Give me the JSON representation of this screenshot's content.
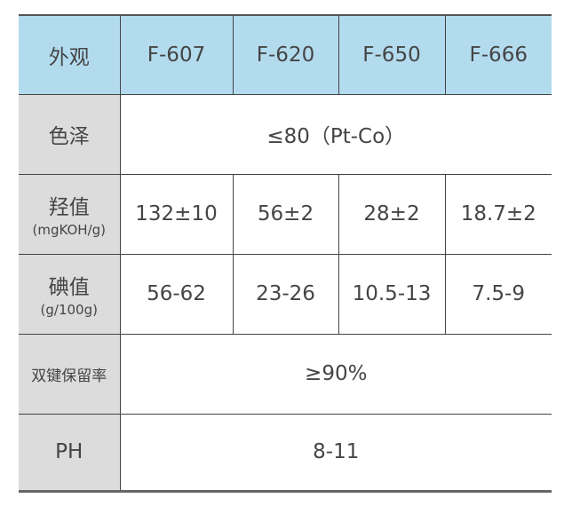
{
  "header": {
    "label": "外观",
    "products": [
      "F-607",
      "F-620",
      "F-650",
      "F-666"
    ]
  },
  "rows": [
    {
      "label": "色泽",
      "unit": "",
      "merged": "≤80（Pt-Co）"
    },
    {
      "label": "羟值",
      "unit": "(mgKOH/g)",
      "values": [
        "132±10",
        "56±2",
        "28±2",
        "18.7±2"
      ]
    },
    {
      "label": "碘值",
      "unit": "(g/100g)",
      "values": [
        "56-62",
        "23-26",
        "10.5-13",
        "7.5-9"
      ]
    },
    {
      "label": "双键保留率",
      "merged": "≥90%"
    },
    {
      "label": "PH",
      "merged": "8-11"
    }
  ],
  "colors": {
    "header_bg": "#b3dbee",
    "label_bg": "#dcdcdc",
    "text": "#454545"
  }
}
